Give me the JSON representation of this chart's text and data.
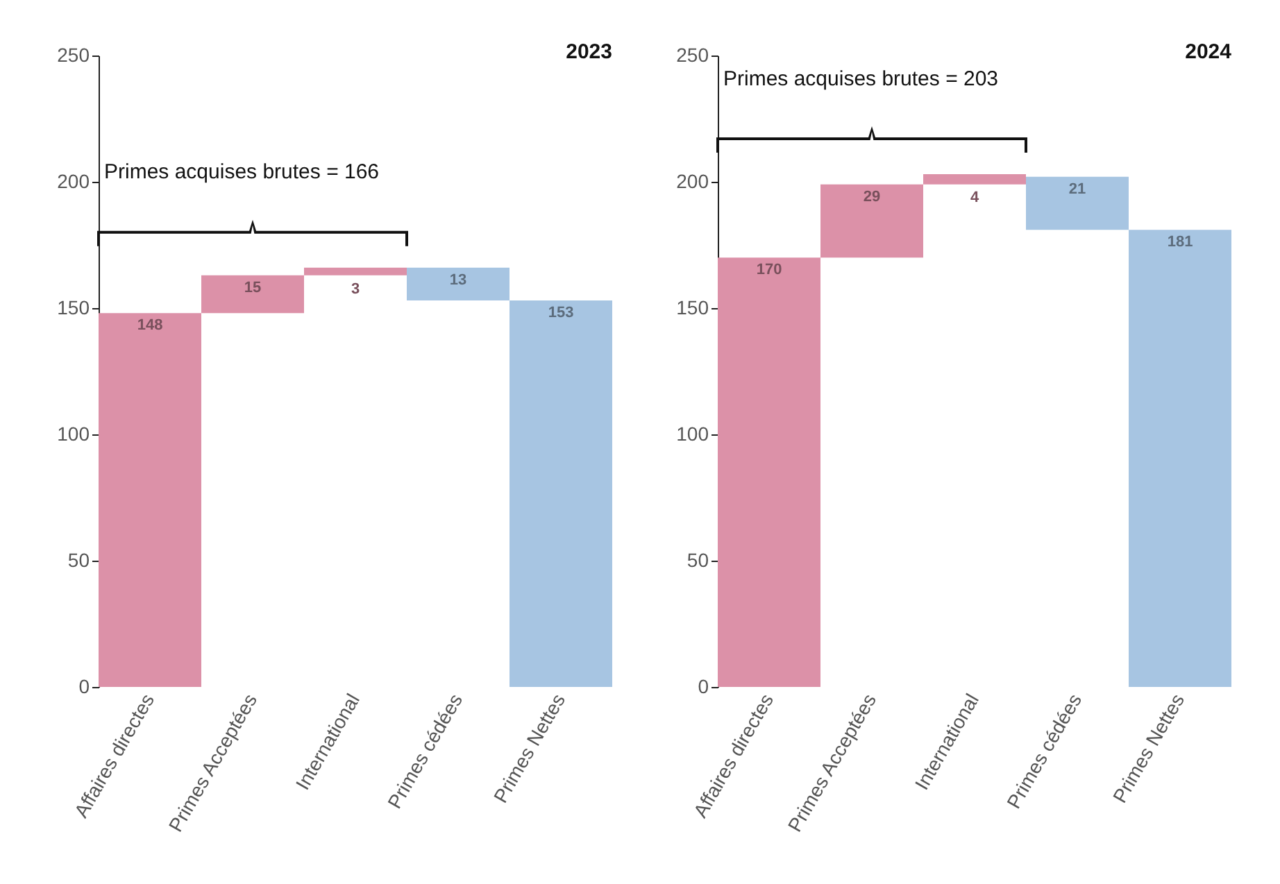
{
  "chart_data": [
    {
      "type": "bar",
      "title": "2023",
      "categories": [
        "Affaires directes",
        "Primes Acceptées",
        "International",
        "Primes cédées",
        "Primes Nettes"
      ],
      "values": [
        148,
        15,
        3,
        13,
        153
      ],
      "base": [
        0,
        148,
        163,
        153,
        0
      ],
      "colors": [
        "#dc91a8",
        "#dc91a8",
        "#dc91a8",
        "#a7c5e2",
        "#a7c5e2"
      ],
      "ylim": [
        0,
        250
      ],
      "yticks": [
        0,
        50,
        100,
        150,
        200,
        250
      ],
      "data_labels": true,
      "annotations": [
        "Primes acquises brutes = 166"
      ]
    },
    {
      "type": "bar",
      "title": "2024",
      "categories": [
        "Affaires directes",
        "Primes Acceptées",
        "International",
        "Primes cédées",
        "Primes Nettes"
      ],
      "values": [
        170,
        29,
        4,
        21,
        181
      ],
      "base": [
        0,
        170,
        199,
        181,
        0
      ],
      "colors": [
        "#dc91a8",
        "#dc91a8",
        "#dc91a8",
        "#a7c5e2",
        "#a7c5e2"
      ],
      "ylim": [
        0,
        250
      ],
      "yticks": [
        0,
        50,
        100,
        150,
        200,
        250
      ],
      "data_labels": true,
      "annotations": [
        "Primes acquises brutes = 203"
      ]
    }
  ]
}
